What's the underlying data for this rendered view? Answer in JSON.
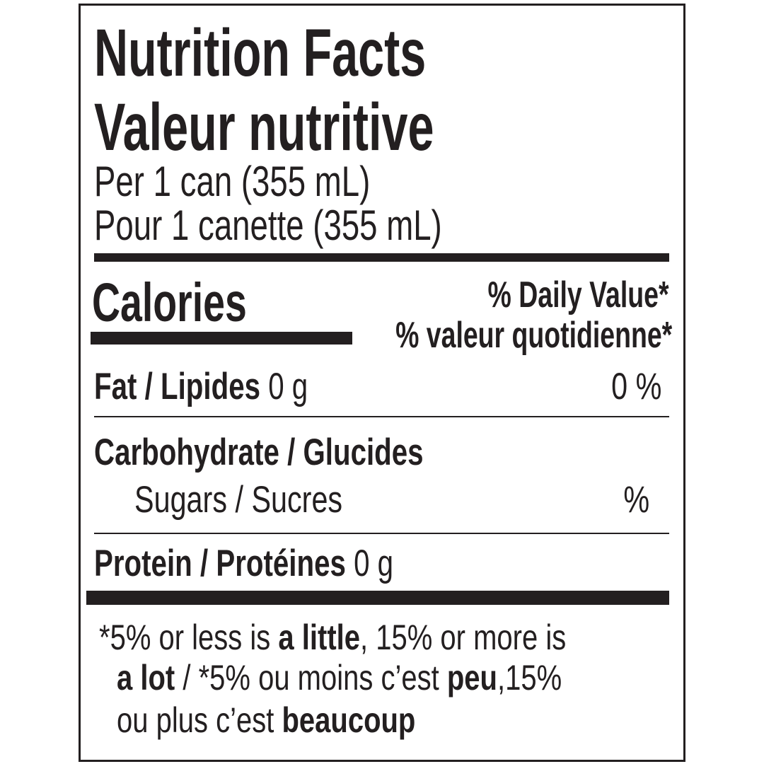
{
  "title_en": "Nutrition Facts",
  "title_fr": "Valeur nutritive",
  "serving_en": "Per 1 can (355 mL)",
  "serving_fr": "Pour 1 canette (355 mL)",
  "calories_label": "Calories",
  "daily_value_en": "% Daily Value*",
  "daily_value_fr": "% valeur quotidienne*",
  "nutrients": {
    "fat": {
      "label": "Fat / Lipides",
      "amount": "0 g",
      "dv": "0 %"
    },
    "carbohydrate": {
      "label": "Carbohydrate / Glucides"
    },
    "sugars": {
      "label": "Sugars / Sucres",
      "dv": "%"
    },
    "protein": {
      "label": "Protein / Protéines",
      "amount": "0 g"
    }
  },
  "footnote": {
    "line1": [
      "*5% or less is ",
      "a little",
      ", 15% or more is"
    ],
    "line2": [
      "a lot",
      " / *5% ou moins c’est ",
      "peu",
      ",15%"
    ],
    "line3": [
      "ou plus c’est ",
      "beaucoup"
    ]
  },
  "colors": {
    "ink": "#231f20",
    "background": "#ffffff"
  }
}
